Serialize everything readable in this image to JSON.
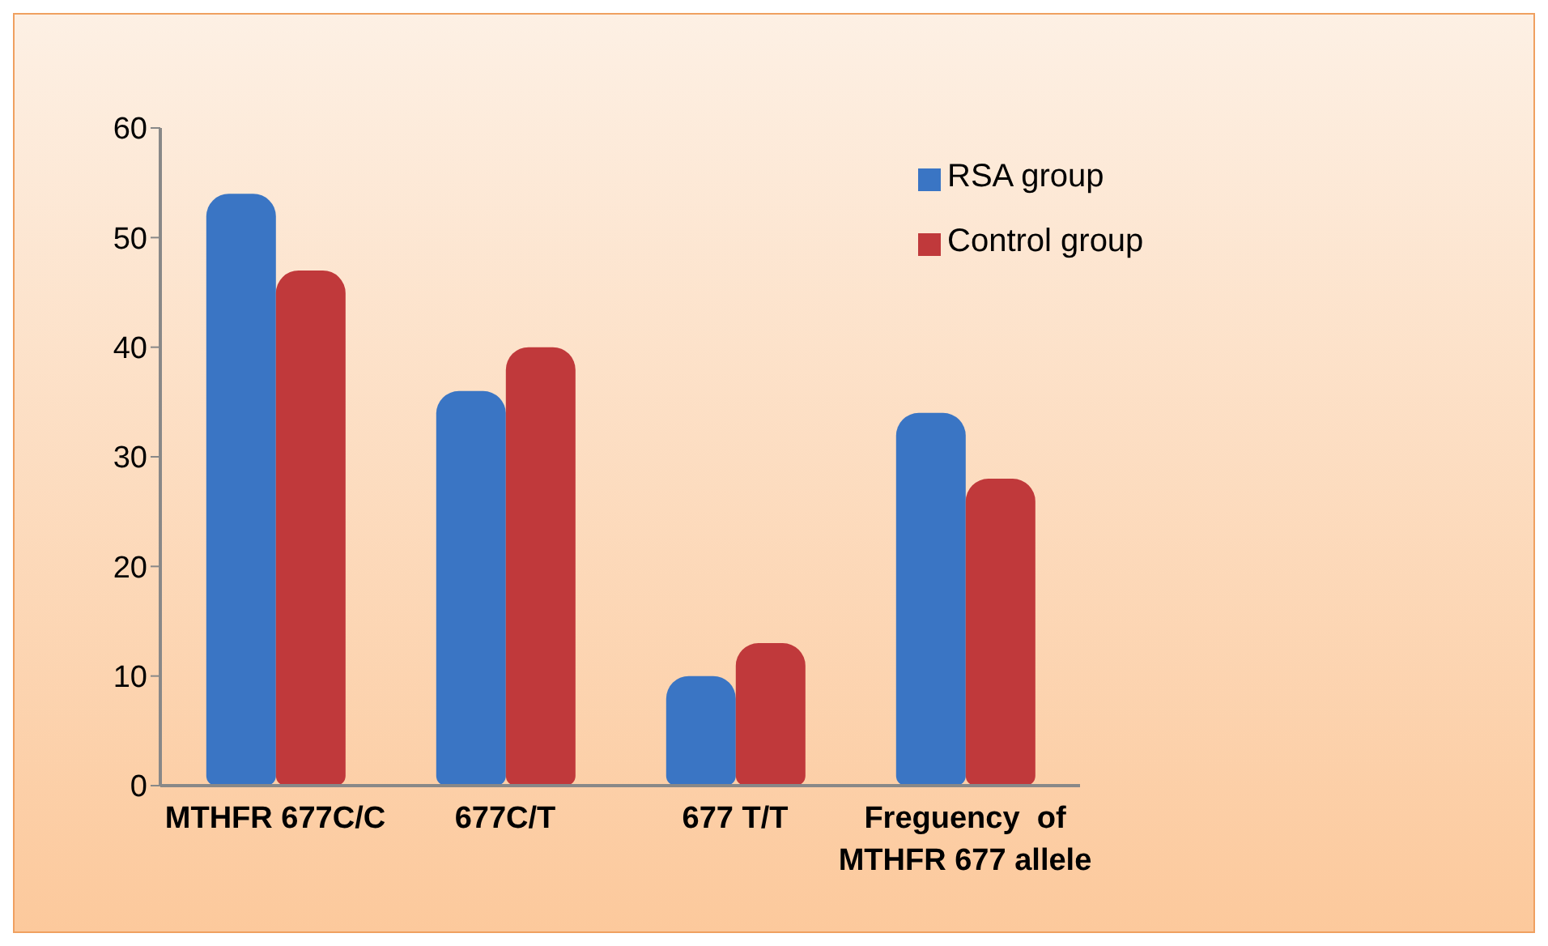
{
  "chart_data": {
    "type": "bar",
    "categories": [
      "MTHFR 677C/C",
      "677C/T",
      "677 T/T",
      "Freguency  of MTHFR 677 allele"
    ],
    "series": [
      {
        "name": "RSA group",
        "color": "#3a75c4",
        "values": [
          54,
          36,
          10,
          34
        ]
      },
      {
        "name": "Control group",
        "color": "#c0393b",
        "values": [
          47,
          40,
          13,
          28
        ]
      }
    ],
    "ylim": [
      0,
      60
    ],
    "yticks": [
      0,
      10,
      20,
      30,
      40,
      50,
      60
    ],
    "grid": false,
    "legend": "top right"
  }
}
